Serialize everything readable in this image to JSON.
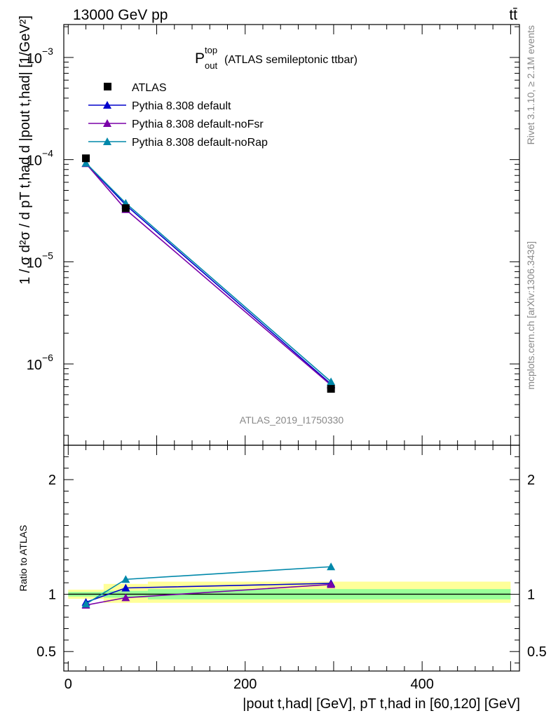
{
  "header": {
    "left_label": "13000 GeV pp",
    "right_label": "tt̄"
  },
  "chart_data": {
    "type": "line",
    "title_main": "P",
    "title_sup": "top",
    "title_sub": "out",
    "title_suffix": "(ATLAS semileptonic ttbar)",
    "analysis_id": "ATLAS_2019_I1750330",
    "side_label_top": "Rivet 3.1.10, ≥ 2.1M events",
    "side_label_bottom": "mcplots.cern.ch [arXiv:1306.3436]",
    "ylabel_top": "1 / σ d²σ / d pT t,had d |pout t,had| [1/GeV²]",
    "ylabel_ratio": "Ratio to ATLAS",
    "xlabel": "|pout t,had| [GeV], pT t,had in [60,120] [GeV]",
    "x_range": [
      -5,
      510
    ],
    "x_ticks": [
      0,
      200,
      400
    ],
    "top_panel": {
      "y_scale": "log",
      "y_range": [
        1.6e-07,
        0.0021
      ],
      "y_ticks": [
        {
          "value": 1e-06,
          "base": "10",
          "exp": "−6"
        },
        {
          "value": 1e-05,
          "base": "10",
          "exp": "−5"
        },
        {
          "value": 0.0001,
          "base": "10",
          "exp": "−4"
        },
        {
          "value": 0.001,
          "base": "10",
          "exp": "−3"
        }
      ],
      "data": {
        "name": "ATLAS",
        "color": "#000000",
        "x": [
          20,
          65,
          297
        ],
        "y": [
          0.000103,
          3.35e-05,
          5.7e-07
        ]
      },
      "series": [
        {
          "name": "Pythia 8.308 default",
          "color": "#0000cc",
          "x": [
            20,
            65,
            297
          ],
          "y": [
            9.2e-05,
            3.6e-05,
            6.35e-07
          ]
        },
        {
          "name": "Pythia 8.308 default-noFsr",
          "color": "#7a00a8",
          "x": [
            20,
            65,
            297
          ],
          "y": [
            9.15e-05,
            3.25e-05,
            6.2e-07
          ]
        },
        {
          "name": "Pythia 8.308 default-noRap",
          "color": "#0088aa",
          "x": [
            20,
            65,
            297
          ],
          "y": [
            9.25e-05,
            3.75e-05,
            6.7e-07
          ]
        }
      ]
    },
    "ratio_panel": {
      "y_range": [
        0.33,
        2.3
      ],
      "y_ticks": [
        0.5,
        1,
        2
      ],
      "y_tick_labels": [
        "0.5",
        "1",
        "2"
      ],
      "bands": [
        {
          "x0": 0,
          "x1": 40,
          "stat_lo": 0.98,
          "stat_hi": 1.02,
          "tot_lo": 0.96,
          "tot_hi": 1.04
        },
        {
          "x0": 40,
          "x1": 90,
          "stat_lo": 0.97,
          "stat_hi": 1.03,
          "tot_lo": 0.925,
          "tot_hi": 1.09
        },
        {
          "x0": 90,
          "x1": 500,
          "stat_lo": 0.955,
          "stat_hi": 1.045,
          "tot_lo": 0.925,
          "tot_hi": 1.11
        }
      ],
      "series": [
        {
          "name": "Pythia 8.308 default",
          "color": "#0000cc",
          "x": [
            20,
            65,
            297
          ],
          "y": [
            0.93,
            1.055,
            1.095
          ]
        },
        {
          "name": "Pythia 8.308 default-noFsr",
          "color": "#7a00a8",
          "x": [
            20,
            65,
            297
          ],
          "y": [
            0.905,
            0.97,
            1.085
          ]
        },
        {
          "name": "Pythia 8.308 default-noRap",
          "color": "#0088aa",
          "x": [
            20,
            65,
            297
          ],
          "y": [
            0.915,
            1.13,
            1.24
          ]
        }
      ]
    },
    "colors": {
      "band_total": "#ffff99",
      "band_stat": "#99ff99",
      "side_text": "#888888"
    }
  }
}
